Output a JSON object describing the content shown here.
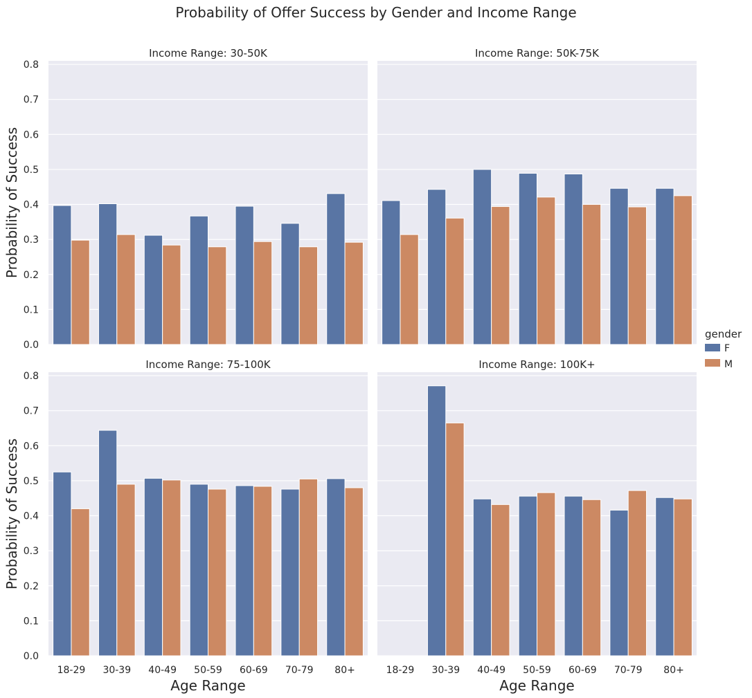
{
  "title": "Probability of Offer Success by Gender and Income Range",
  "legend": {
    "title": "gender",
    "items": [
      {
        "label": "F",
        "color": "#5975a4"
      },
      {
        "label": "M",
        "color": "#cc8963"
      }
    ]
  },
  "chart_data": {
    "type": "bar",
    "xlabel": "Age Range",
    "ylabel": "Probability of Success",
    "ylim": [
      0,
      0.81
    ],
    "yticks": [
      "0.0",
      "0.1",
      "0.2",
      "0.3",
      "0.4",
      "0.5",
      "0.6",
      "0.7",
      "0.8"
    ],
    "grid": true,
    "legend_position": "right",
    "categories": [
      "18-29",
      "30-39",
      "40-49",
      "50-59",
      "60-69",
      "70-79",
      "80+"
    ],
    "panels": [
      {
        "title": "Income Range: 30-50K",
        "series": [
          {
            "name": "F",
            "values": [
              0.397,
              0.402,
              0.312,
              0.367,
              0.395,
              0.346,
              0.431
            ]
          },
          {
            "name": "M",
            "values": [
              0.298,
              0.314,
              0.284,
              0.279,
              0.294,
              0.279,
              0.292
            ]
          }
        ]
      },
      {
        "title": "Income Range: 50K-75K",
        "series": [
          {
            "name": "F",
            "values": [
              0.411,
              0.443,
              0.5,
              0.489,
              0.487,
              0.446,
              0.446
            ]
          },
          {
            "name": "M",
            "values": [
              0.314,
              0.361,
              0.394,
              0.421,
              0.4,
              0.393,
              0.425
            ]
          }
        ]
      },
      {
        "title": "Income Range: 75-100K",
        "series": [
          {
            "name": "F",
            "values": [
              0.525,
              0.644,
              0.507,
              0.49,
              0.486,
              0.476,
              0.506
            ]
          },
          {
            "name": "M",
            "values": [
              0.42,
              0.49,
              0.502,
              0.476,
              0.484,
              0.505,
              0.48
            ]
          }
        ]
      },
      {
        "title": "Income Range: 100K+",
        "series": [
          {
            "name": "F",
            "values": [
              0,
              0.771,
              0.448,
              0.456,
              0.456,
              0.416,
              0.452
            ]
          },
          {
            "name": "M",
            "values": [
              0,
              0.665,
              0.432,
              0.466,
              0.446,
              0.472,
              0.448
            ]
          }
        ]
      }
    ]
  }
}
